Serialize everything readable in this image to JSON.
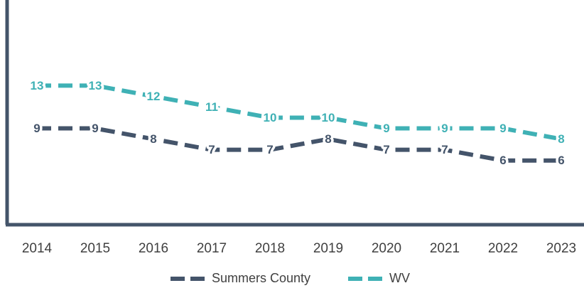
{
  "chart_data": {
    "type": "line",
    "categories": [
      "2014",
      "2015",
      "2016",
      "2017",
      "2018",
      "2019",
      "2020",
      "2021",
      "2022",
      "2023"
    ],
    "series": [
      {
        "name": "Summers County",
        "color": "#44546a",
        "values": [
          9,
          9,
          8,
          7,
          7,
          8,
          7,
          7,
          6,
          6
        ]
      },
      {
        "name": "WV",
        "color": "#3fb1b5",
        "values": [
          13,
          13,
          12,
          11,
          10,
          10,
          9,
          9,
          9,
          8
        ]
      }
    ],
    "ylim": [
      0,
      20
    ],
    "legend": "bottom"
  }
}
